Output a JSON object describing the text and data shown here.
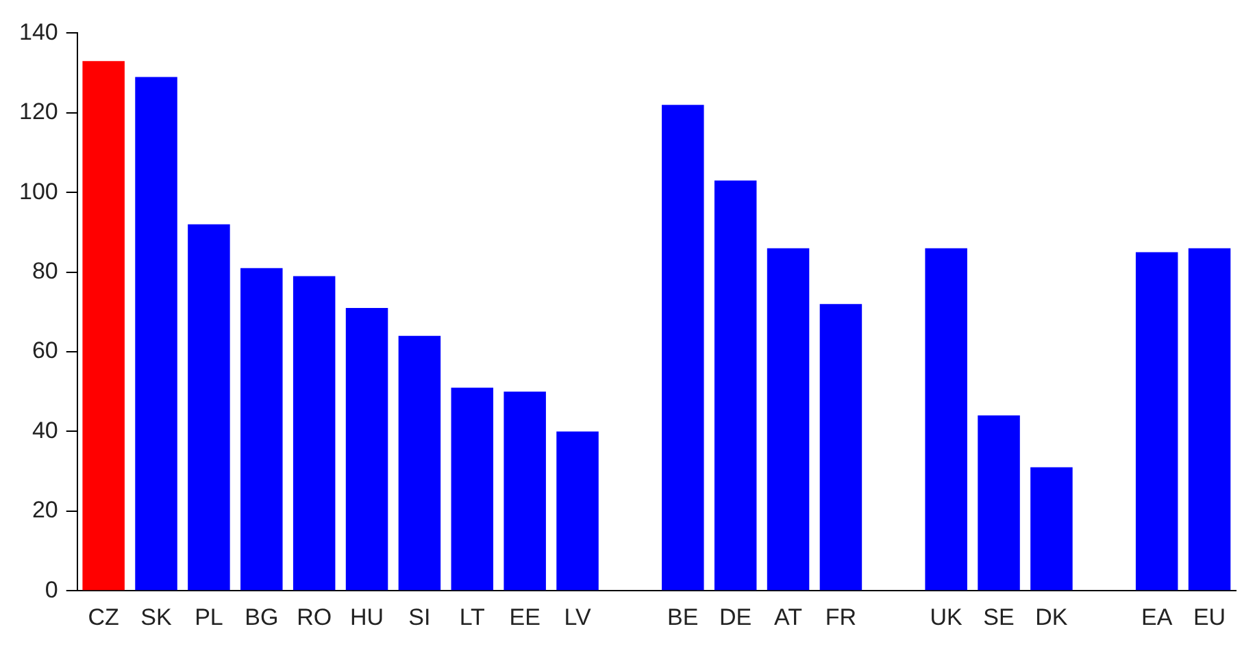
{
  "chart_data": {
    "type": "bar",
    "categories": [
      "CZ",
      "SK",
      "PL",
      "BG",
      "RO",
      "HU",
      "SI",
      "LT",
      "EE",
      "LV",
      null,
      "BE",
      "DE",
      "AT",
      "FR",
      null,
      "UK",
      "SE",
      "DK",
      null,
      "EA",
      "EU"
    ],
    "values": [
      133,
      129,
      92,
      81,
      79,
      71,
      64,
      51,
      50,
      40,
      null,
      122,
      103,
      86,
      72,
      null,
      86,
      44,
      31,
      null,
      85,
      86
    ],
    "colors": [
      "#ff0000",
      "#0000ff",
      "#0000ff",
      "#0000ff",
      "#0000ff",
      "#0000ff",
      "#0000ff",
      "#0000ff",
      "#0000ff",
      "#0000ff",
      "#0000ff",
      "#0000ff",
      "#0000ff",
      "#0000ff",
      "#0000ff",
      "#0000ff",
      "#0000ff",
      "#0000ff",
      "#0000ff",
      "#0000ff",
      "#0000ff",
      "#0000ff"
    ],
    "ylim": [
      0,
      140
    ],
    "yticks": [
      0,
      20,
      40,
      60,
      80,
      100,
      120,
      140
    ],
    "grid": false,
    "legend": false
  }
}
